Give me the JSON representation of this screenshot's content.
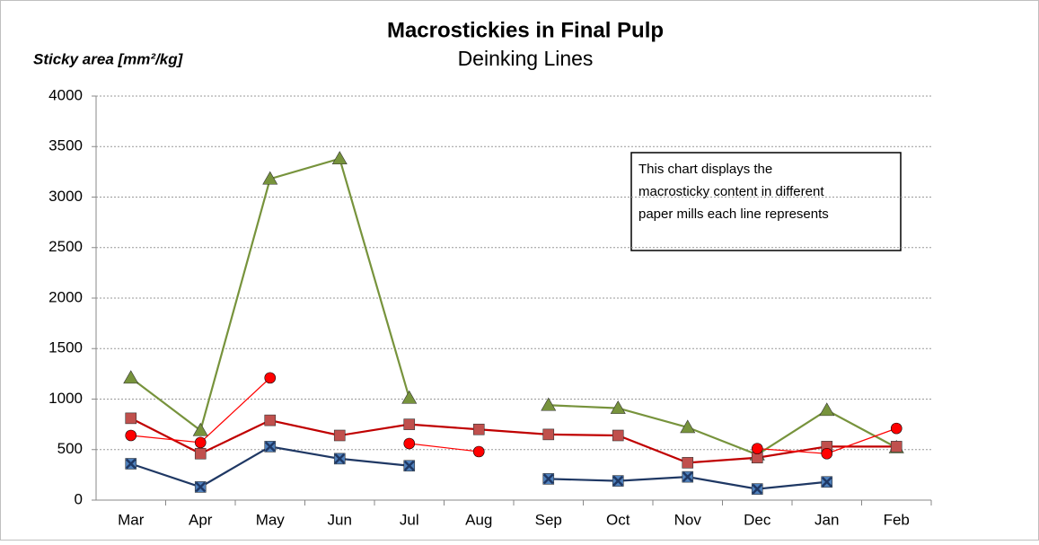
{
  "chart_data": {
    "type": "line",
    "title": "Macrostickies in Final Pulp",
    "subtitle": "Deinking Lines",
    "y_label": "Sticky area [mm²/kg]",
    "annotation": [
      "This chart displays the",
      "macrosticky content in different",
      "paper mills each line represents"
    ],
    "categories": [
      "Mar",
      "Apr",
      "May",
      "Jun",
      "Jul",
      "Aug",
      "Sep",
      "Oct",
      "Nov",
      "Dec",
      "Jan",
      "Feb"
    ],
    "series": [
      {
        "color": "#77933c",
        "marker": "triangle",
        "values": [
          1210,
          690,
          3180,
          3380,
          1010,
          null,
          940,
          910,
          720,
          450,
          890,
          520
        ]
      },
      {
        "color": "#c0504d",
        "line_color": "#c00000",
        "marker": "square",
        "values": [
          810,
          460,
          790,
          640,
          750,
          700,
          650,
          640,
          370,
          420,
          530,
          530
        ]
      },
      {
        "color": "#ff0000",
        "line_color": "#ff0000",
        "marker": "circle",
        "values": [
          640,
          570,
          1210,
          null,
          560,
          480,
          null,
          null,
          null,
          510,
          460,
          710
        ]
      },
      {
        "color": "#4f81bd",
        "line_color": "#1f3864",
        "marker": "x-square",
        "values": [
          360,
          130,
          530,
          410,
          340,
          null,
          210,
          190,
          230,
          110,
          180,
          null
        ]
      }
    ],
    "ylim": [
      0,
      4000
    ],
    "yticks": [
      0,
      500,
      1000,
      1500,
      2000,
      2500,
      3000,
      3500,
      4000
    ],
    "grid": true
  }
}
